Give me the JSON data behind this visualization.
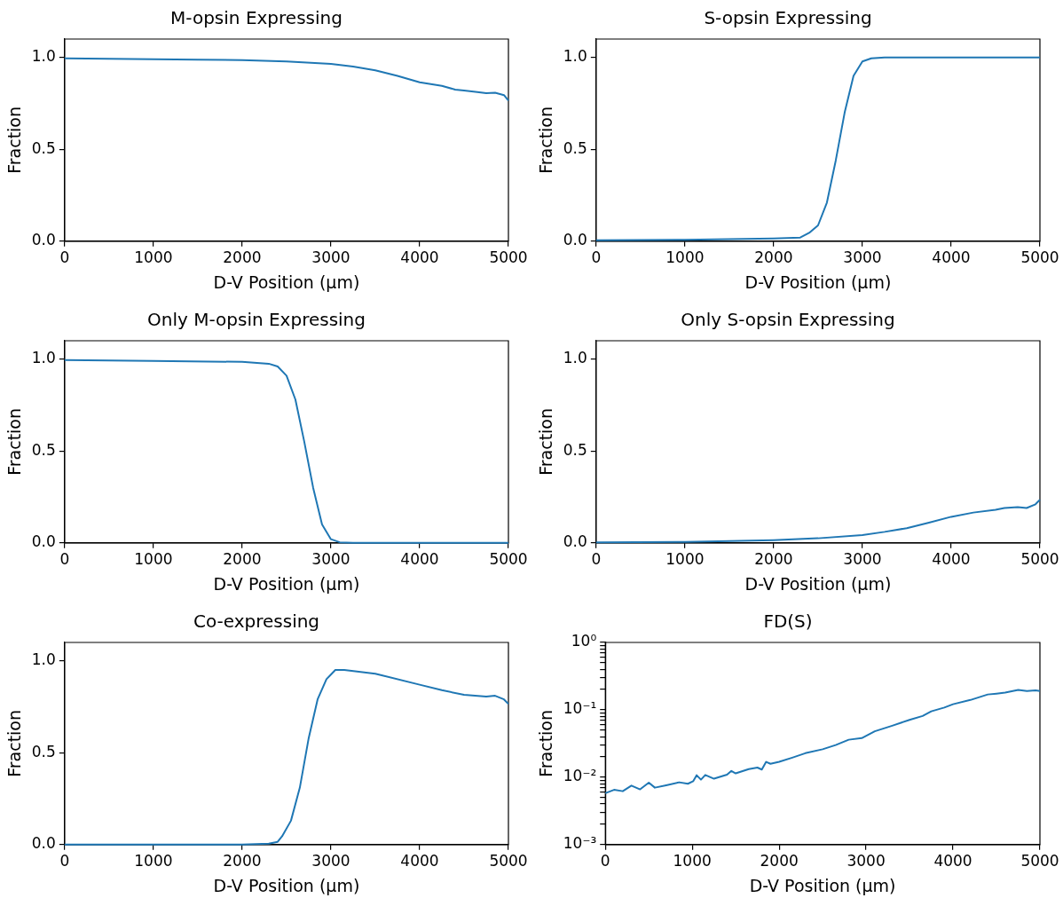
{
  "chart_data": [
    {
      "type": "line",
      "title": "M-opsin Expressing",
      "xlabel": "D-V Position (μm)",
      "ylabel": "Fraction",
      "xlim": [
        0,
        5000
      ],
      "ylim": [
        0,
        1.1
      ],
      "xticks": [
        0,
        1000,
        2000,
        3000,
        4000,
        5000
      ],
      "yticks": [
        {
          "value": 0,
          "label": "0.0"
        },
        {
          "value": 0.5,
          "label": "0.5"
        },
        {
          "value": 1,
          "label": "1.0"
        }
      ],
      "grid": false,
      "legend": false,
      "marker": "none",
      "x": [
        0,
        500,
        1000,
        1500,
        2000,
        2500,
        3000,
        3250,
        3500,
        3750,
        4000,
        4250,
        4400,
        4500,
        4650,
        4750,
        4850,
        4950,
        5000
      ],
      "series": [
        {
          "color": "#1f77b4",
          "values": [
            0.995,
            0.993,
            0.99,
            0.988,
            0.985,
            0.978,
            0.965,
            0.95,
            0.93,
            0.9,
            0.865,
            0.845,
            0.825,
            0.82,
            0.812,
            0.805,
            0.808,
            0.795,
            0.765
          ]
        }
      ]
    },
    {
      "type": "line",
      "title": "S-opsin Expressing",
      "xlabel": "D-V Position (μm)",
      "ylabel": "Fraction",
      "xlim": [
        0,
        5000
      ],
      "ylim": [
        0,
        1.1
      ],
      "xticks": [
        0,
        1000,
        2000,
        3000,
        4000,
        5000
      ],
      "yticks": [
        {
          "value": 0,
          "label": "0.0"
        },
        {
          "value": 0.5,
          "label": "0.5"
        },
        {
          "value": 1,
          "label": "1.0"
        }
      ],
      "grid": false,
      "legend": false,
      "marker": "none",
      "x": [
        0,
        1000,
        2000,
        2300,
        2400,
        2500,
        2600,
        2700,
        2800,
        2900,
        3000,
        3100,
        3250,
        4000,
        5000
      ],
      "series": [
        {
          "color": "#1f77b4",
          "values": [
            0.005,
            0.008,
            0.015,
            0.02,
            0.045,
            0.086,
            0.21,
            0.44,
            0.7,
            0.9,
            0.978,
            0.995,
            1,
            1,
            1
          ]
        }
      ]
    },
    {
      "type": "line",
      "title": "Only M-opsin Expressing",
      "xlabel": "D-V Position (μm)",
      "ylabel": "Fraction",
      "xlim": [
        0,
        5000
      ],
      "ylim": [
        0,
        1.1
      ],
      "xticks": [
        0,
        1000,
        2000,
        3000,
        4000,
        5000
      ],
      "yticks": [
        {
          "value": 0,
          "label": "0.0"
        },
        {
          "value": 0.5,
          "label": "0.5"
        },
        {
          "value": 1,
          "label": "1.0"
        }
      ],
      "grid": false,
      "legend": false,
      "marker": "none",
      "x": [
        0,
        1000,
        2000,
        2300,
        2400,
        2500,
        2600,
        2700,
        2800,
        2900,
        3000,
        3100,
        3250,
        4000,
        5000
      ],
      "series": [
        {
          "color": "#1f77b4",
          "values": [
            0.995,
            0.99,
            0.985,
            0.975,
            0.96,
            0.91,
            0.78,
            0.55,
            0.3,
            0.1,
            0.02,
            0.003,
            0,
            0,
            0
          ]
        }
      ]
    },
    {
      "type": "line",
      "title": "Only S-opsin Expressing",
      "xlabel": "D-V Position (μm)",
      "ylabel": "Fraction",
      "xlim": [
        0,
        5000
      ],
      "ylim": [
        0,
        1.1
      ],
      "xticks": [
        0,
        1000,
        2000,
        3000,
        4000,
        5000
      ],
      "yticks": [
        {
          "value": 0,
          "label": "0.0"
        },
        {
          "value": 0.5,
          "label": "0.5"
        },
        {
          "value": 1,
          "label": "1.0"
        }
      ],
      "grid": false,
      "legend": false,
      "marker": "none",
      "x": [
        0,
        1000,
        2000,
        2500,
        3000,
        3250,
        3500,
        3750,
        4000,
        4250,
        4500,
        4600,
        4750,
        4850,
        4950,
        5000
      ],
      "series": [
        {
          "color": "#1f77b4",
          "values": [
            0.003,
            0.005,
            0.015,
            0.025,
            0.043,
            0.06,
            0.08,
            0.11,
            0.142,
            0.165,
            0.18,
            0.19,
            0.195,
            0.19,
            0.21,
            0.235
          ]
        }
      ]
    },
    {
      "type": "line",
      "title": "Co-expressing",
      "xlabel": "D-V Position (μm)",
      "ylabel": "Fraction",
      "xlim": [
        0,
        5000
      ],
      "ylim": [
        0,
        1.1
      ],
      "xticks": [
        0,
        1000,
        2000,
        3000,
        4000,
        5000
      ],
      "yticks": [
        {
          "value": 0,
          "label": "0.0"
        },
        {
          "value": 0.5,
          "label": "0.5"
        },
        {
          "value": 1,
          "label": "1.0"
        }
      ],
      "grid": false,
      "legend": false,
      "marker": "none",
      "x": [
        0,
        1000,
        2000,
        2300,
        2400,
        2450,
        2550,
        2650,
        2750,
        2850,
        2950,
        3050,
        3150,
        3500,
        4000,
        4250,
        4500,
        4750,
        4850,
        4950,
        5000
      ],
      "series": [
        {
          "color": "#1f77b4",
          "values": [
            0,
            0,
            0,
            0.005,
            0.015,
            0.045,
            0.13,
            0.31,
            0.58,
            0.79,
            0.9,
            0.95,
            0.95,
            0.93,
            0.87,
            0.84,
            0.815,
            0.805,
            0.81,
            0.79,
            0.765
          ]
        }
      ]
    },
    {
      "type": "line",
      "title": "FD(S)",
      "xlabel": "D-V Position (μm)",
      "ylabel": "Fraction",
      "log": "y",
      "xlim": [
        0,
        5000
      ],
      "ylim": [
        0.001,
        1
      ],
      "xticks": [
        0,
        1000,
        2000,
        3000,
        4000,
        5000
      ],
      "yticks": [
        {
          "value": 0.001,
          "label": "10⁻³"
        },
        {
          "value": 0.002,
          "label": null
        },
        {
          "value": 0.003,
          "label": null
        },
        {
          "value": 0.004,
          "label": null
        },
        {
          "value": 0.005,
          "label": null
        },
        {
          "value": 0.006,
          "label": null
        },
        {
          "value": 0.007,
          "label": null
        },
        {
          "value": 0.008,
          "label": null
        },
        {
          "value": 0.009,
          "label": null
        },
        {
          "value": 0.01,
          "label": "10⁻²"
        },
        {
          "value": 0.02,
          "label": null
        },
        {
          "value": 0.03,
          "label": null
        },
        {
          "value": 0.04,
          "label": null
        },
        {
          "value": 0.05,
          "label": null
        },
        {
          "value": 0.06,
          "label": null
        },
        {
          "value": 0.07,
          "label": null
        },
        {
          "value": 0.08,
          "label": null
        },
        {
          "value": 0.09,
          "label": null
        },
        {
          "value": 0.1,
          "label": "10⁻¹"
        },
        {
          "value": 0.2,
          "label": null
        },
        {
          "value": 0.3,
          "label": null
        },
        {
          "value": 0.4,
          "label": null
        },
        {
          "value": 0.5,
          "label": null
        },
        {
          "value": 0.6,
          "label": null
        },
        {
          "value": 0.7,
          "label": null
        },
        {
          "value": 0.8,
          "label": null
        },
        {
          "value": 0.9,
          "label": null
        },
        {
          "value": 1,
          "label": "10⁰"
        }
      ],
      "grid": false,
      "legend": false,
      "marker": "none",
      "x": [
        0,
        100,
        200,
        300,
        400,
        500,
        570,
        700,
        850,
        950,
        1010,
        1050,
        1100,
        1150,
        1250,
        1400,
        1450,
        1500,
        1650,
        1750,
        1800,
        1850,
        1900,
        2000,
        2150,
        2300,
        2500,
        2650,
        2800,
        2950,
        3100,
        3300,
        3500,
        3650,
        3750,
        3900,
        4000,
        4200,
        4400,
        4500,
        4600,
        4750,
        4850,
        4950,
        5000
      ],
      "series": [
        {
          "color": "#1f77b4",
          "values": [
            0.0058,
            0.0065,
            0.0062,
            0.0075,
            0.0066,
            0.0083,
            0.007,
            0.0076,
            0.0084,
            0.008,
            0.0087,
            0.0107,
            0.0092,
            0.0108,
            0.0095,
            0.0109,
            0.0124,
            0.0114,
            0.0132,
            0.0139,
            0.013,
            0.0169,
            0.0158,
            0.0169,
            0.0195,
            0.0227,
            0.026,
            0.03,
            0.036,
            0.038,
            0.048,
            0.058,
            0.071,
            0.081,
            0.095,
            0.108,
            0.121,
            0.14,
            0.169,
            0.174,
            0.18,
            0.197,
            0.19,
            0.194,
            0.19
          ]
        }
      ]
    }
  ]
}
